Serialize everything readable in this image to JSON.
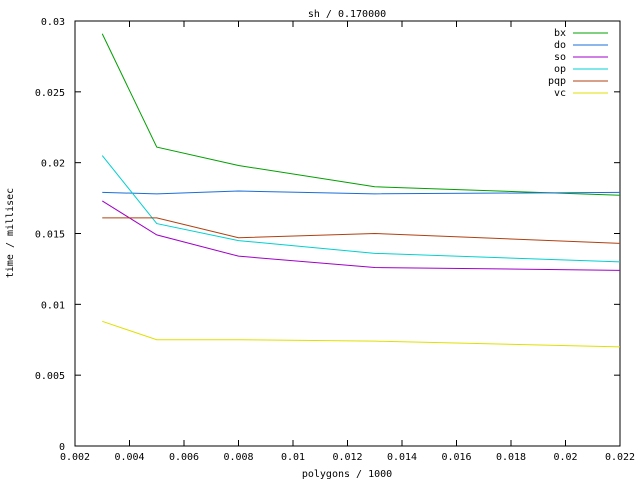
{
  "chart_data": {
    "type": "line",
    "title": "sh / 0.170000",
    "xlabel": "polygons / 1000",
    "ylabel": "time / millisec",
    "xlim": [
      0.002,
      0.022
    ],
    "ylim": [
      0,
      0.03
    ],
    "x_ticks": [
      "0.002",
      "0.004",
      "0.006",
      "0.008",
      "0.01",
      "0.012",
      "0.014",
      "0.016",
      "0.018",
      "0.02",
      "0.022"
    ],
    "y_ticks": [
      "0",
      "0.005",
      "0.01",
      "0.015",
      "0.02",
      "0.025",
      "0.03"
    ],
    "grid": false,
    "legend_position": "top-right",
    "x": [
      0.003,
      0.005,
      0.008,
      0.013,
      0.022
    ],
    "series": [
      {
        "name": "bx",
        "color": "#00a000",
        "values": [
          0.0291,
          0.0211,
          0.0198,
          0.0183,
          0.0177
        ]
      },
      {
        "name": "do",
        "color": "#1a6ed8",
        "values": [
          0.0179,
          0.0178,
          0.018,
          0.0178,
          0.0179
        ]
      },
      {
        "name": "so",
        "color": "#a000c8",
        "values": [
          0.0173,
          0.0149,
          0.0134,
          0.0126,
          0.0124
        ]
      },
      {
        "name": "op",
        "color": "#00d0d0",
        "values": [
          0.0205,
          0.0157,
          0.0145,
          0.0136,
          0.013
        ]
      },
      {
        "name": "pqp",
        "color": "#b04010",
        "values": [
          0.0161,
          0.0161,
          0.0147,
          0.015,
          0.0143
        ]
      },
      {
        "name": "vc",
        "color": "#e0e000",
        "values": [
          0.0088,
          0.0075,
          0.0075,
          0.0074,
          0.007
        ]
      }
    ]
  }
}
